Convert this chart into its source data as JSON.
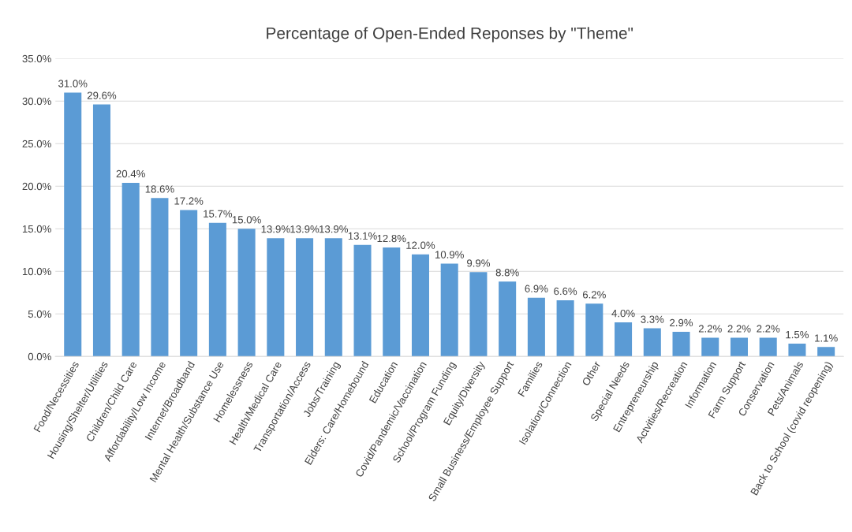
{
  "chart_data": {
    "type": "bar",
    "title": "Percentage of Open-Ended Reponses by \"Theme\"",
    "categories": [
      "Food/Necessities",
      "Housing/Shelter/Utilities",
      "Children/Child Care",
      "Affordability/Low Income",
      "Internet/Broadband",
      "Mental Health/Substance Use",
      "Homelessness",
      "Health/Medical Care",
      "Transportation/Access",
      "Jobs/Training",
      "Elders: Care/Homebound",
      "Education",
      "Covid/Pandemic/Vaccination",
      "School/Program Funding",
      "Equity/Diversity",
      "Small Business/Employee Support",
      "Families",
      "Isolation/Connection",
      "Other",
      "Special Needs",
      "Entrepreneurship",
      "Actvities/Recreation",
      "Information",
      "Farm Support",
      "Conservation",
      "Pets/Animals",
      "Back to School (covid reopening)"
    ],
    "values": [
      31.0,
      29.6,
      20.4,
      18.6,
      17.2,
      15.7,
      15.0,
      13.9,
      13.9,
      13.9,
      13.1,
      12.8,
      12.0,
      10.9,
      9.9,
      8.8,
      6.9,
      6.6,
      6.2,
      4.0,
      3.3,
      2.9,
      2.2,
      2.2,
      2.2,
      1.5,
      1.1
    ],
    "value_labels": [
      "31.0%",
      "29.6%",
      "20.4%",
      "18.6%",
      "17.2%",
      "15.7%",
      "15.0%",
      "13.9%",
      "13.9%",
      "13.9%",
      "13.1%",
      "12.8%",
      "12.0%",
      "10.9%",
      "9.9%",
      "8.8%",
      "6.9%",
      "6.6%",
      "6.2%",
      "4.0%",
      "3.3%",
      "2.9%",
      "2.2%",
      "2.2%",
      "2.2%",
      "1.5%",
      "1.1%"
    ],
    "color": "#5b9bd5",
    "ylim": [
      0,
      35
    ],
    "yticks": [
      {
        "value": 0,
        "label": "0.0%"
      },
      {
        "value": 5,
        "label": "5.0%"
      },
      {
        "value": 10,
        "label": "10.0%"
      },
      {
        "value": 15,
        "label": "15.0%"
      },
      {
        "value": 20,
        "label": "20.0%"
      },
      {
        "value": 25,
        "label": "25.0%"
      },
      {
        "value": 30,
        "label": "30.0%"
      },
      {
        "value": 35,
        "label": "35.0%"
      }
    ],
    "grid": "y",
    "legend": false
  }
}
